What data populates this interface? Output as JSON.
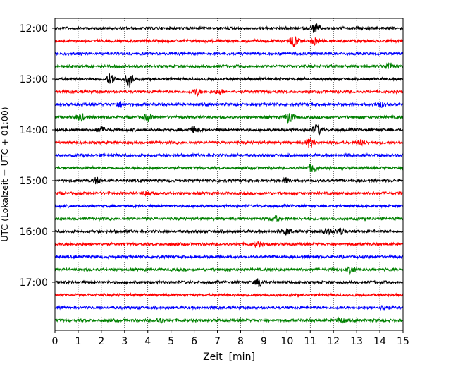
{
  "chart_data": {
    "type": "line",
    "title": "",
    "xlabel": "Zeit  [min]",
    "ylabel": "UTC (Lokalzeit = UTC + 01:00)",
    "xlim": [
      0,
      15
    ],
    "x_ticks": [
      "0",
      "1",
      "2",
      "3",
      "4",
      "5",
      "6",
      "7",
      "8",
      "9",
      "10",
      "11",
      "12",
      "13",
      "14",
      "15"
    ],
    "y_ticks": [
      "12:00",
      "13:00",
      "14:00",
      "15:00",
      "16:00",
      "17:00"
    ],
    "grid": "vertical dotted",
    "trace_interval_minutes": 15,
    "color_cycle": [
      "#000000",
      "#ff0000",
      "#0000ff",
      "#008000"
    ],
    "traces": [
      {
        "start": "12:00",
        "color": "#000000",
        "events": [
          {
            "t": 11.2,
            "amp": 1.2
          }
        ]
      },
      {
        "start": "12:15",
        "color": "#ff0000",
        "events": [
          {
            "t": 10.3,
            "amp": 1.6
          },
          {
            "t": 11.2,
            "amp": 1.0
          }
        ]
      },
      {
        "start": "12:30",
        "color": "#0000ff",
        "events": []
      },
      {
        "start": "12:45",
        "color": "#008000",
        "events": [
          {
            "t": 14.4,
            "amp": 1.0
          }
        ]
      },
      {
        "start": "13:00",
        "color": "#000000",
        "events": [
          {
            "t": 2.4,
            "amp": 1.5
          },
          {
            "t": 3.2,
            "amp": 1.8
          }
        ]
      },
      {
        "start": "13:15",
        "color": "#ff0000",
        "events": [
          {
            "t": 6.1,
            "amp": 0.8
          },
          {
            "t": 7.1,
            "amp": 0.6
          }
        ]
      },
      {
        "start": "13:30",
        "color": "#0000ff",
        "events": [
          {
            "t": 2.8,
            "amp": 0.7
          },
          {
            "t": 14.0,
            "amp": 0.7
          }
        ]
      },
      {
        "start": "13:45",
        "color": "#008000",
        "events": [
          {
            "t": 1.1,
            "amp": 1.0
          },
          {
            "t": 4.0,
            "amp": 0.9
          },
          {
            "t": 10.1,
            "amp": 1.6
          }
        ]
      },
      {
        "start": "14:00",
        "color": "#000000",
        "events": [
          {
            "t": 2.0,
            "amp": 0.7
          },
          {
            "t": 6.0,
            "amp": 0.7
          },
          {
            "t": 11.3,
            "amp": 1.4
          }
        ]
      },
      {
        "start": "14:15",
        "color": "#ff0000",
        "events": [
          {
            "t": 11.0,
            "amp": 1.2
          },
          {
            "t": 13.2,
            "amp": 0.7
          }
        ]
      },
      {
        "start": "14:30",
        "color": "#0000ff",
        "events": []
      },
      {
        "start": "14:45",
        "color": "#008000",
        "events": [
          {
            "t": 11.1,
            "amp": 1.0
          }
        ]
      },
      {
        "start": "15:00",
        "color": "#000000",
        "events": [
          {
            "t": 1.8,
            "amp": 0.8
          },
          {
            "t": 10.0,
            "amp": 0.8
          }
        ]
      },
      {
        "start": "15:15",
        "color": "#ff0000",
        "events": [
          {
            "t": 4.0,
            "amp": 0.6
          }
        ]
      },
      {
        "start": "15:30",
        "color": "#0000ff",
        "events": []
      },
      {
        "start": "15:45",
        "color": "#008000",
        "events": [
          {
            "t": 9.5,
            "amp": 0.7
          }
        ]
      },
      {
        "start": "16:00",
        "color": "#000000",
        "events": [
          {
            "t": 10.0,
            "amp": 0.8
          },
          {
            "t": 11.7,
            "amp": 0.7
          },
          {
            "t": 12.3,
            "amp": 0.8
          }
        ]
      },
      {
        "start": "16:15",
        "color": "#ff0000",
        "events": [
          {
            "t": 8.7,
            "amp": 0.6
          }
        ]
      },
      {
        "start": "16:30",
        "color": "#0000ff",
        "events": []
      },
      {
        "start": "16:45",
        "color": "#008000",
        "events": [
          {
            "t": 12.8,
            "amp": 0.8
          }
        ]
      },
      {
        "start": "17:00",
        "color": "#000000",
        "events": [
          {
            "t": 8.8,
            "amp": 1.0
          }
        ]
      },
      {
        "start": "17:15",
        "color": "#ff0000",
        "events": []
      },
      {
        "start": "17:30",
        "color": "#0000ff",
        "events": [
          {
            "t": 14.2,
            "amp": 0.6
          }
        ]
      },
      {
        "start": "17:45",
        "color": "#008000",
        "events": [
          {
            "t": 4.5,
            "amp": 0.6
          },
          {
            "t": 12.3,
            "amp": 0.6
          }
        ]
      }
    ]
  }
}
